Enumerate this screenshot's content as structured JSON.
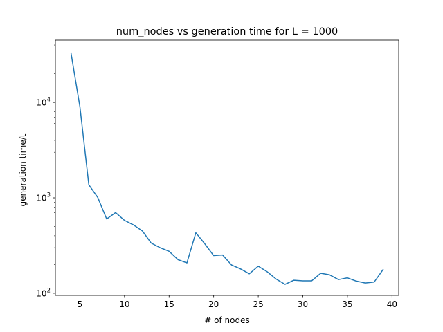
{
  "chart_data": {
    "type": "line",
    "title": "num_nodes vs generation time for L = 1000",
    "xlabel": "# of nodes",
    "ylabel": "generation time/t",
    "x_scale": "linear",
    "y_scale": "log",
    "xlim": [
      2.25,
      40.75
    ],
    "ylim": [
      95,
      45000
    ],
    "grid": false,
    "x_ticks": [
      {
        "value": 5,
        "label": "5"
      },
      {
        "value": 10,
        "label": "10"
      },
      {
        "value": 15,
        "label": "15"
      },
      {
        "value": 20,
        "label": "20"
      },
      {
        "value": 25,
        "label": "25"
      },
      {
        "value": 30,
        "label": "30"
      },
      {
        "value": 35,
        "label": "35"
      },
      {
        "value": 40,
        "label": "40"
      }
    ],
    "y_ticks": [
      {
        "value": 100,
        "base": "10",
        "exp": "2"
      },
      {
        "value": 1000,
        "base": "10",
        "exp": "3"
      },
      {
        "value": 10000,
        "base": "10",
        "exp": "4"
      }
    ],
    "series": [
      {
        "color": "#1f77b4",
        "x": [
          4,
          5,
          6,
          7,
          8,
          9,
          10,
          11,
          12,
          13,
          14,
          15,
          16,
          17,
          18,
          19,
          20,
          21,
          22,
          23,
          24,
          25,
          26,
          27,
          28,
          29,
          30,
          31,
          32,
          33,
          34,
          35,
          36,
          37,
          38,
          39
        ],
        "y": [
          33000,
          9000,
          1370,
          1010,
          600,
          700,
          580,
          520,
          450,
          335,
          300,
          275,
          225,
          208,
          430,
          330,
          248,
          252,
          198,
          180,
          160,
          192,
          168,
          141,
          124,
          137,
          135,
          135,
          162,
          156,
          139,
          145,
          134,
          128,
          131,
          177
        ]
      }
    ]
  }
}
